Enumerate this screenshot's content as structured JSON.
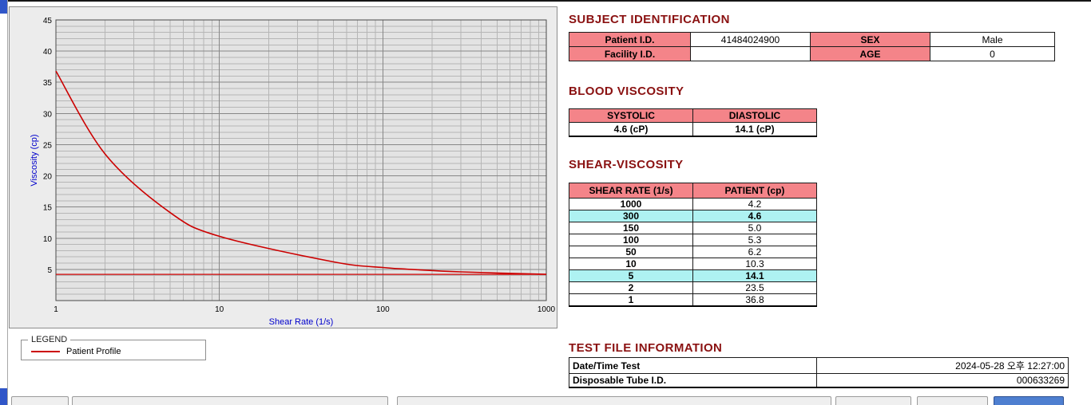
{
  "colors": {
    "heading": "#8a1111",
    "table_header_bg": "#f48489",
    "highlight_bg": "#aef2f2",
    "series_line": "#cc0000",
    "axis_label": "#0000cc"
  },
  "chart_data": {
    "type": "line",
    "title": "",
    "xlabel": "Shear Rate (1/s)",
    "ylabel": "Viscosity (cp)",
    "x_scale": "log",
    "xlim": [
      1,
      1000
    ],
    "ylim": [
      0,
      45
    ],
    "x_ticks": [
      1,
      10,
      100,
      1000
    ],
    "y_ticks": [
      5,
      10,
      15,
      20,
      25,
      30,
      35,
      40,
      45
    ],
    "grid": "on",
    "legend_position": "below-left",
    "series": [
      {
        "name": "Patient Profile",
        "x": [
          1,
          2,
          5,
          10,
          50,
          100,
          150,
          300,
          1000
        ],
        "y": [
          36.8,
          23.5,
          14.1,
          10.3,
          6.2,
          5.3,
          5.0,
          4.6,
          4.2
        ]
      }
    ],
    "reference_line_y": 4.2
  },
  "legend": {
    "title": "LEGEND",
    "series_label": "Patient Profile"
  },
  "sections": {
    "subject": {
      "title": "SUBJECT IDENTIFICATION",
      "rows": [
        {
          "label1": "Patient I.D.",
          "value1": "41484024900",
          "label2": "SEX",
          "value2": "Male"
        },
        {
          "label1": "Facility I.D.",
          "value1": "",
          "label2": "AGE",
          "value2": "0"
        }
      ]
    },
    "blood_viscosity": {
      "title": "BLOOD VISCOSITY",
      "headers": [
        "SYSTOLIC",
        "DIASTOLIC"
      ],
      "values": [
        "4.6 (cP)",
        "14.1 (cP)"
      ]
    },
    "shear_viscosity": {
      "title": "SHEAR-VISCOSITY",
      "headers": [
        "SHEAR RATE (1/s)",
        "PATIENT (cp)"
      ],
      "rows": [
        {
          "rate": "1000",
          "value": "4.2",
          "highlight": false
        },
        {
          "rate": "300",
          "value": "4.6",
          "highlight": true
        },
        {
          "rate": "150",
          "value": "5.0",
          "highlight": false
        },
        {
          "rate": "100",
          "value": "5.3",
          "highlight": false
        },
        {
          "rate": "50",
          "value": "6.2",
          "highlight": false
        },
        {
          "rate": "10",
          "value": "10.3",
          "highlight": false
        },
        {
          "rate": "5",
          "value": "14.1",
          "highlight": true
        },
        {
          "rate": "2",
          "value": "23.5",
          "highlight": false
        },
        {
          "rate": "1",
          "value": "36.8",
          "highlight": false
        }
      ]
    },
    "test_file": {
      "title": "TEST FILE INFORMATION",
      "rows": [
        {
          "label": "Date/Time Test",
          "value": "2024-05-28  오후 12:27:00"
        },
        {
          "label": "Disposable Tube I.D.",
          "value": "000633269"
        }
      ]
    }
  }
}
